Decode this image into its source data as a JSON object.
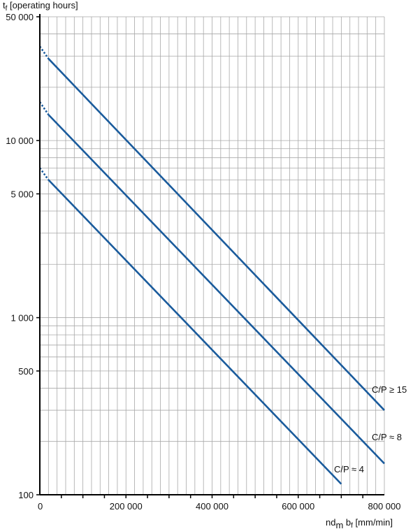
{
  "chart_data": {
    "type": "line",
    "y_axis": {
      "scale": "log",
      "range": [
        100,
        50000
      ],
      "tick_values": [
        100,
        500,
        1000,
        5000,
        10000,
        50000
      ],
      "tick_labels": [
        "100",
        "500",
        "1 000",
        "5 000",
        "10 000",
        "50 000"
      ],
      "label_main": "t",
      "label_sub": "f",
      "label_rest": " [operating hours]"
    },
    "x_axis": {
      "scale": "linear",
      "range": [
        0,
        800000
      ],
      "tick_values": [
        0,
        200000,
        400000,
        600000,
        800000
      ],
      "tick_labels": [
        "0",
        "200 000",
        "400 000",
        "600 000",
        "800 000"
      ],
      "label_a": "nd",
      "label_a_sub": "m",
      "label_b": " b",
      "label_b_sub": "f",
      "label_rest": " [mm/min]"
    },
    "grid": true,
    "color": "#1a5b9c",
    "series": [
      {
        "name": "C/P ≥ 15",
        "x": [
          20000,
          800000
        ],
        "y": [
          29000,
          300
        ],
        "x_extrapolated_from": 0,
        "y_extrapolated_from": 34000
      },
      {
        "name": "C/P ≈ 8",
        "x": [
          20000,
          800000
        ],
        "y": [
          14000,
          150
        ],
        "x_extrapolated_from": 0,
        "y_extrapolated_from": 16500
      },
      {
        "name": "C/P ≈ 4",
        "x": [
          20000,
          700000
        ],
        "y": [
          6000,
          115
        ],
        "x_extrapolated_from": 0,
        "y_extrapolated_from": 7000
      }
    ]
  }
}
